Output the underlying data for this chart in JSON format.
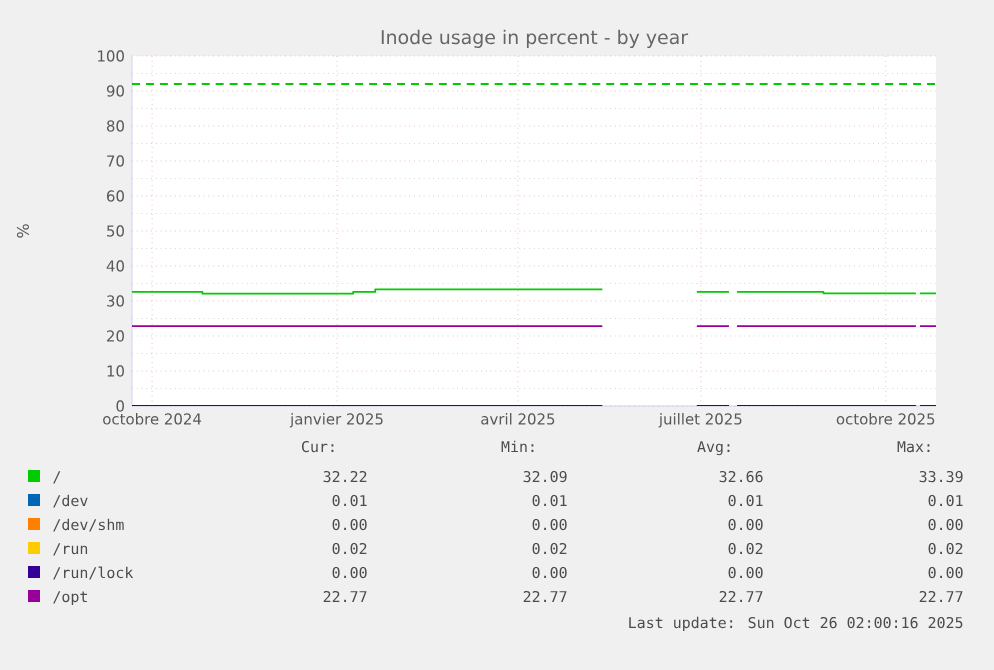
{
  "chart_data": {
    "type": "step",
    "title": "Inode usage in percent - by year",
    "ylabel": "%",
    "x": [
      "2024-09-21",
      "2024-10-26",
      "2025-01-09",
      "2025-01-20",
      "2025-05-13",
      "2025-05-14",
      "2025-06-29",
      "2025-07-15",
      "2025-07-16",
      "2025-07-19",
      "2025-08-31",
      "2025-10-16",
      "2025-10-17",
      "2025-10-18",
      "2025-10-26"
    ],
    "series": [
      {
        "name": "/",
        "color": "#00cc00",
        "values": [
          32.6,
          32.1,
          32.6,
          33.3,
          33.3,
          null,
          32.6,
          32.6,
          null,
          32.6,
          32.2,
          32.2,
          null,
          32.2,
          32.2
        ]
      },
      {
        "name": "/dev",
        "color": "#0066b3",
        "values": [
          null,
          null,
          null,
          null,
          null,
          null,
          null,
          null,
          null,
          null,
          null,
          null,
          null,
          null,
          null
        ]
      },
      {
        "name": "/dev/shm",
        "color": "#ff8000",
        "values": [
          null,
          null,
          null,
          null,
          null,
          null,
          null,
          null,
          null,
          null,
          null,
          null,
          null,
          null,
          null
        ]
      },
      {
        "name": "/run",
        "color": "#ffcc00",
        "values": [
          null,
          null,
          null,
          null,
          null,
          null,
          null,
          null,
          null,
          null,
          null,
          null,
          null,
          null,
          null
        ]
      },
      {
        "name": "/run/lock",
        "color": "#330099",
        "values": [
          0,
          0,
          0,
          0,
          0,
          null,
          0,
          0,
          null,
          0,
          0,
          0,
          null,
          0,
          0
        ]
      },
      {
        "name": "/opt",
        "color": "#990099",
        "values": [
          22.8,
          22.8,
          22.8,
          22.8,
          22.8,
          null,
          22.8,
          22.8,
          null,
          22.8,
          22.8,
          22.8,
          null,
          22.8,
          22.8
        ]
      }
    ],
    "xlim": [
      "2024-09-21",
      "2025-10-26"
    ],
    "xticks": [
      {
        "value": "2024-10-01",
        "label": "octobre 2024"
      },
      {
        "value": "2025-01-01",
        "label": "janvier 2025"
      },
      {
        "value": "2025-04-01",
        "label": "avril 2025"
      },
      {
        "value": "2025-07-01",
        "label": "juillet 2025"
      },
      {
        "value": "2025-10-01",
        "label": "octobre 2025"
      }
    ],
    "ylim": [
      0,
      100
    ],
    "yticks": [
      0,
      10,
      20,
      30,
      40,
      50,
      60,
      70,
      80,
      90,
      100
    ],
    "ref_lines": [
      {
        "axis": "y",
        "value": 92,
        "color": "#00cc00",
        "line_style": "dashed"
      }
    ],
    "grid": true,
    "legend": "bottom",
    "annotations": [
      "Cur:",
      "Min:",
      "Avg:",
      "Max:",
      "32.22",
      "32.09",
      "32.66",
      "33.39",
      "0.01",
      "0.01",
      "0.01",
      "0.01",
      "0.00",
      "0.00",
      "0.00",
      "0.00",
      "0.02",
      "0.02",
      "0.02",
      "0.02",
      "0.00",
      "0.00",
      "0.00",
      "0.00",
      "22.77",
      "22.77",
      "22.77",
      "22.77",
      "Last update: Sun Oct 26 02:00:16 2025"
    ]
  }
}
